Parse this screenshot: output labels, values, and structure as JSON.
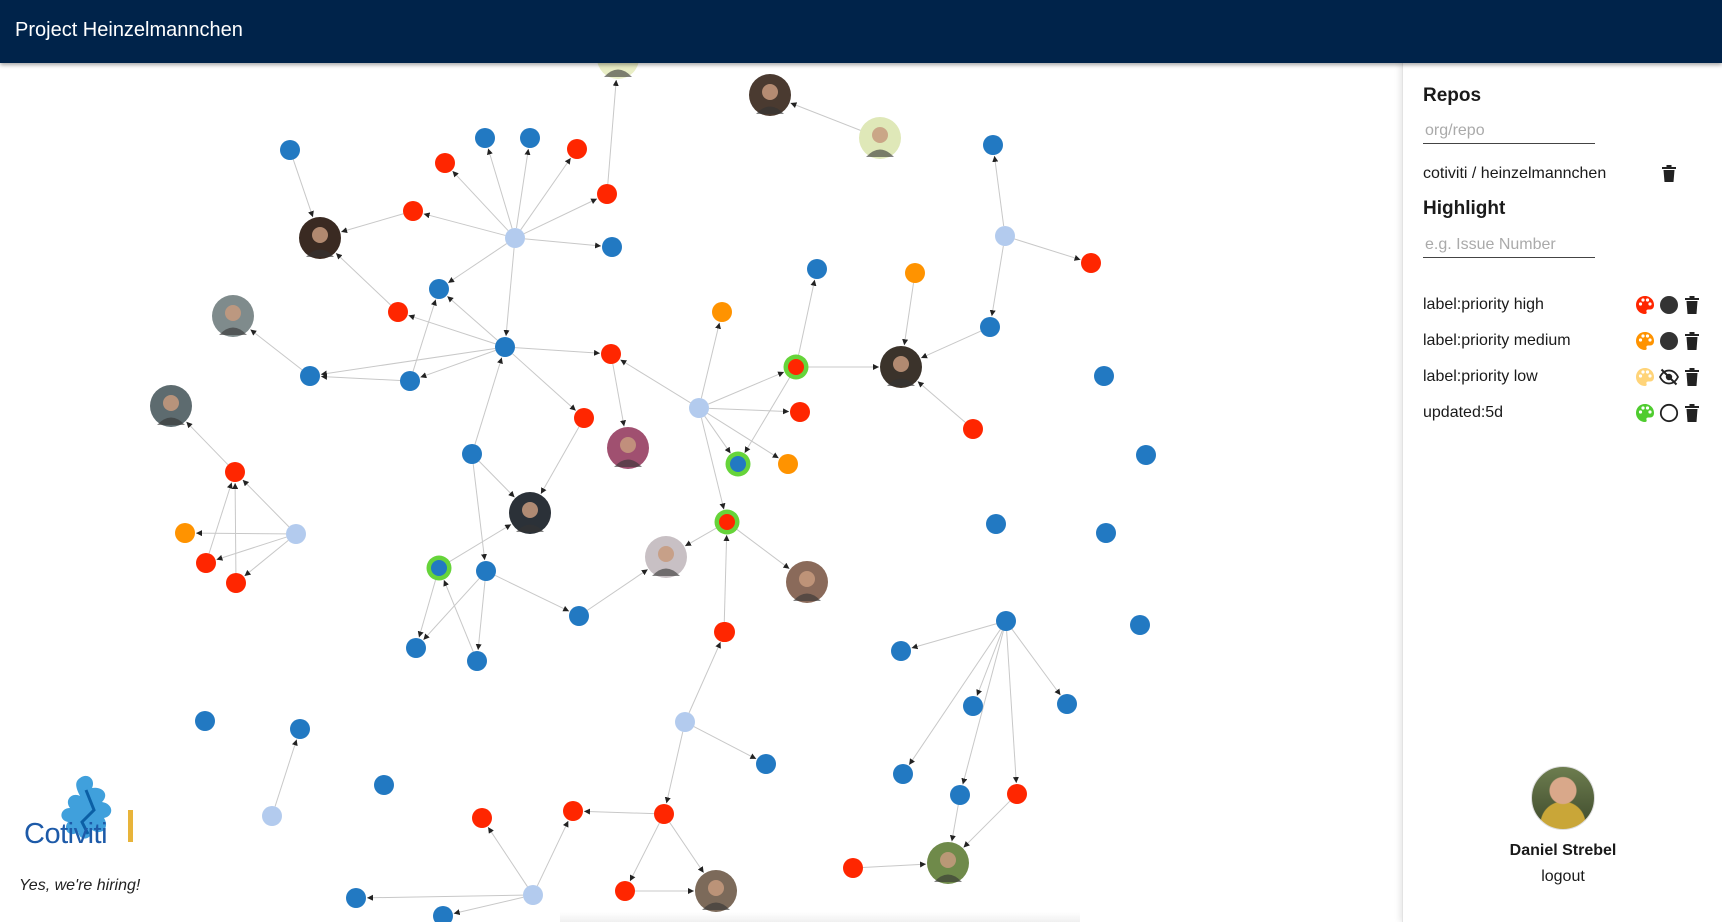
{
  "header": {
    "title": "Project Heinzelmannchen"
  },
  "sidebar": {
    "repos": {
      "heading": "Repos",
      "input_placeholder": "org/repo",
      "items": [
        {
          "label": "cotiviti / heinzelmannchen"
        }
      ]
    },
    "highlight": {
      "heading": "Highlight",
      "input_placeholder": "e.g. Issue Number",
      "items": [
        {
          "label": "label:priority high",
          "color": "#ff2600",
          "visibility": "filled-circle"
        },
        {
          "label": "label:priority medium",
          "color": "#ff9300",
          "visibility": "filled-circle"
        },
        {
          "label": "label:priority low",
          "color": "#ffd479",
          "visibility": "hidden-eye"
        },
        {
          "label": "updated:5d",
          "color": "#4fcc2f",
          "visibility": "outline-circle"
        }
      ]
    },
    "user": {
      "name": "Daniel Strebel",
      "logout_label": "logout"
    }
  },
  "branding": {
    "logo_text": "Cotiviti",
    "tagline": "Yes, we're hiring!"
  },
  "colors": {
    "header_bg": "#00234a",
    "issue_blue": "#2279c2",
    "issue_red": "#ff2600",
    "issue_orange": "#ff9300",
    "hub_lightblue": "#b3cbee",
    "updated_ring": "#66d43a",
    "edge": "#c8c8c8"
  }
}
